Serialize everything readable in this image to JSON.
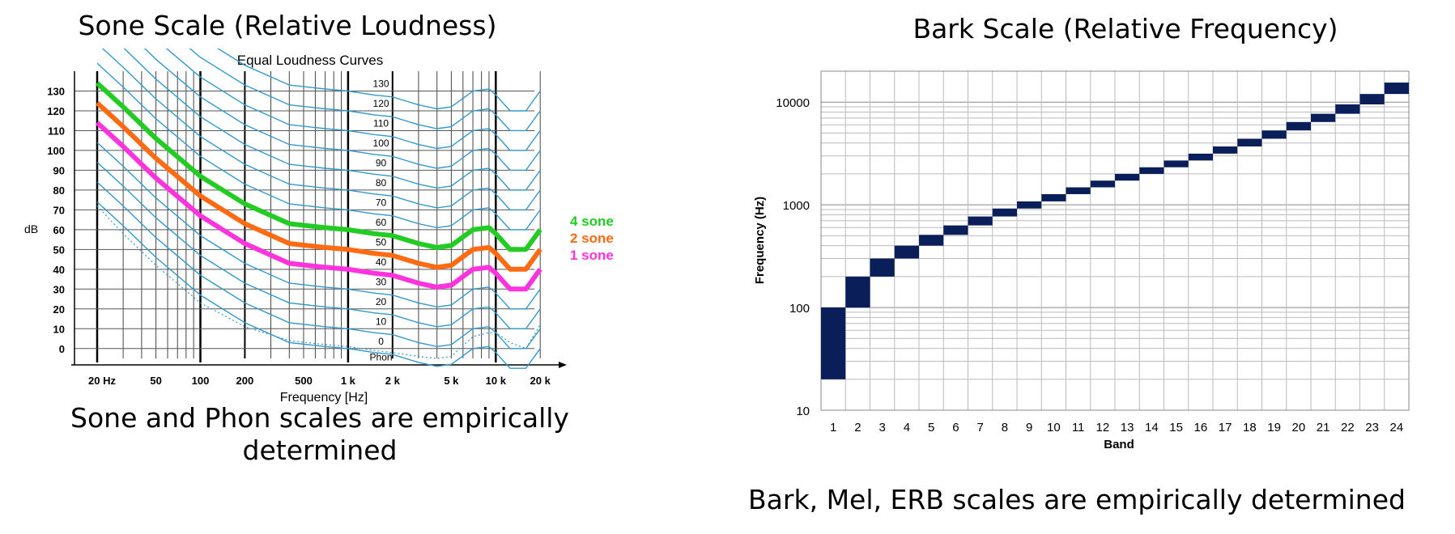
{
  "left_panel": {
    "heading": "Sone Scale (Relative Loudness)",
    "caption": "Sone and Phon scales are empirically determined"
  },
  "right_panel": {
    "heading": "Bark Scale (Relative Frequency)",
    "caption": "Bark, Mel, ERB scales are empirically determined"
  },
  "chart_data": [
    {
      "type": "line",
      "title": "Equal Loudness Curves",
      "xlabel": "Frequency [Hz]",
      "ylabel": "dB",
      "x_scale": "log",
      "xlim": [
        20,
        20000
      ],
      "ylim": [
        -5,
        140
      ],
      "grid": true,
      "x_ticks": [
        20,
        50,
        100,
        200,
        500,
        1000,
        2000,
        5000,
        10000,
        20000
      ],
      "x_tick_labels": [
        "20 Hz",
        "50",
        "100",
        "200",
        "500",
        "1 k",
        "2 k",
        "5 k",
        "10 k",
        "20 k"
      ],
      "y_ticks": [
        0,
        10,
        20,
        30,
        40,
        50,
        60,
        70,
        80,
        90,
        100,
        110,
        120,
        130
      ],
      "curve_x": [
        20,
        30,
        50,
        100,
        200,
        400,
        700,
        1000,
        1500,
        2000,
        3000,
        4000,
        5000,
        7000,
        9000,
        10000,
        12500,
        16000,
        20000
      ],
      "phon_offsets": [
        74,
        62,
        46,
        27,
        13,
        3,
        1,
        0,
        -2,
        -3,
        -7,
        -9,
        -8,
        0,
        1,
        -2,
        -10,
        -10,
        0
      ],
      "phon_levels": [
        0,
        10,
        20,
        30,
        40,
        50,
        60,
        70,
        80,
        90,
        100,
        110,
        120,
        130
      ],
      "phon_labels": [
        "0",
        "10",
        "20",
        "30",
        "40",
        "50",
        "60",
        "70",
        "80",
        "90",
        "100",
        "110",
        "120",
        "130"
      ],
      "phon_unit_label": "Phon",
      "threshold_offsets": [
        72,
        58,
        42,
        23,
        11,
        4,
        2,
        1,
        -1,
        -2,
        -4,
        -5,
        -4,
        6,
        8,
        8,
        3,
        0,
        12
      ],
      "sone_series": [
        {
          "name": "4 sone",
          "phon": 60,
          "color": "#22cc22"
        },
        {
          "name": "2 sone",
          "phon": 50,
          "color": "#ff6a13"
        },
        {
          "name": "1 sone",
          "phon": 40,
          "color": "#ff33dd"
        }
      ],
      "curve_color": "#3399cc",
      "legend": "right"
    },
    {
      "type": "bar",
      "title": "",
      "xlabel": "Band",
      "ylabel": "Frequency (Hz)",
      "y_scale": "log",
      "ylim": [
        10,
        20000
      ],
      "y_tick_labels": [
        "10",
        "100",
        "1000",
        "10000"
      ],
      "categories": [
        "1",
        "2",
        "3",
        "4",
        "5",
        "6",
        "7",
        "8",
        "9",
        "10",
        "11",
        "12",
        "13",
        "14",
        "15",
        "16",
        "17",
        "18",
        "19",
        "20",
        "21",
        "22",
        "23",
        "24"
      ],
      "band_low_hz": [
        20,
        100,
        200,
        300,
        400,
        510,
        630,
        770,
        920,
        1080,
        1270,
        1480,
        1720,
        2000,
        2320,
        2700,
        3150,
        3700,
        4400,
        5300,
        6400,
        7700,
        9500,
        12000
      ],
      "band_high_hz": [
        100,
        200,
        300,
        400,
        510,
        630,
        770,
        920,
        1080,
        1270,
        1480,
        1720,
        2000,
        2320,
        2700,
        3150,
        3700,
        4400,
        5300,
        6400,
        7700,
        9500,
        12000,
        15500
      ],
      "bar_color": "#0a1e5a",
      "grid": true
    }
  ]
}
